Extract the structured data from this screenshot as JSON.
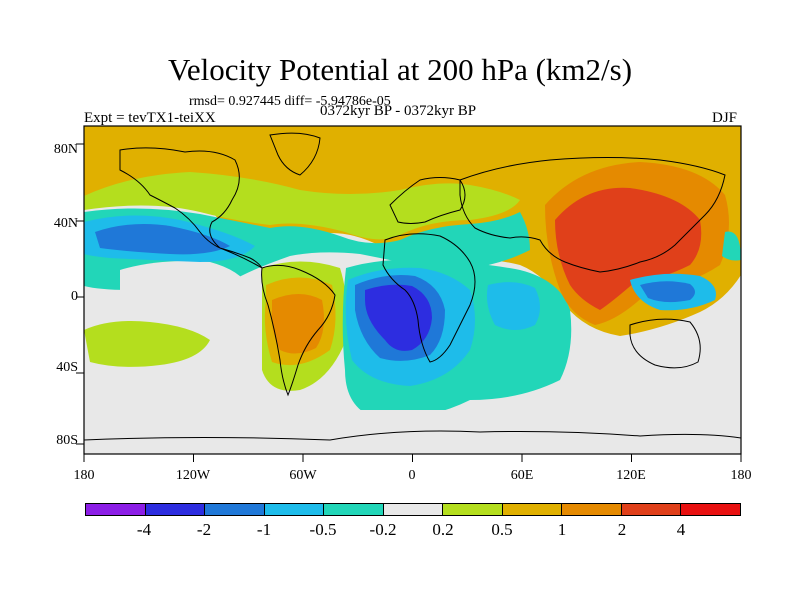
{
  "title": "Velocity Potential at 200 hPa (km2/s)",
  "stats": "rmsd= 0.927445 diff= -5.94786e-05",
  "experiment": "Expt = tevTX1-teiXX",
  "period": "0372kyr BP - 0372kyr BP",
  "season": "DJF",
  "lon_labels": [
    "180",
    "120W",
    "60W",
    "0",
    "60E",
    "120E",
    "180"
  ],
  "lat_labels": [
    "80N",
    "40N",
    "0",
    "40S",
    "80S"
  ],
  "colorbar": {
    "labels": [
      "-4",
      "-2",
      "-1",
      "-0.5",
      "-0.2",
      "0.2",
      "0.5",
      "1",
      "2",
      "4"
    ],
    "colors": [
      "#8c1ee6",
      "#2d2de0",
      "#1f78d8",
      "#1ebcea",
      "#22d6b8",
      "#e8e8e8",
      "#b4de1e",
      "#e0b000",
      "#e58a00",
      "#e0401a",
      "#e81010"
    ]
  }
}
